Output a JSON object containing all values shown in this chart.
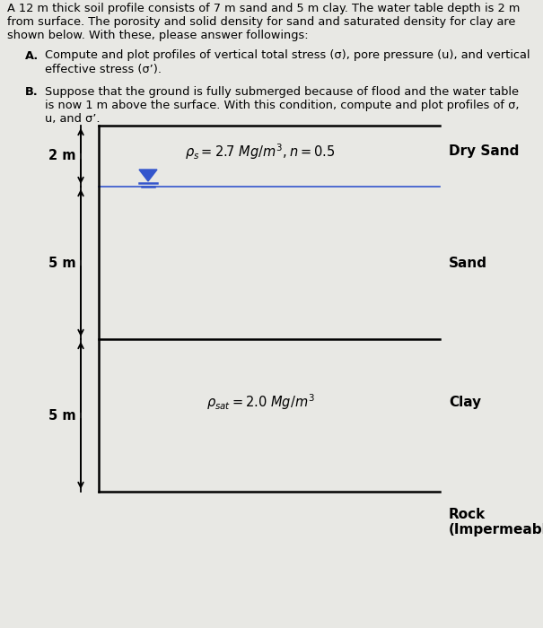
{
  "bg_color": "#e8e8e4",
  "text_color": "#000000",
  "fig_width": 6.05,
  "fig_height": 7.0,
  "dpi": 100,
  "top_text_line1": "A 12 m thick soil profile consists of 7 m sand and 5 m clay. The water table depth is 2 m",
  "top_text_line2": "from surface. The porosity and solid density for sand and saturated density for clay are",
  "top_text_line3": "shown below. With these, please answer followings:",
  "itemA_label": "A.",
  "itemA_text_line1": "Compute and plot profiles of vertical total stress (σ), pore pressure (u), and vertical",
  "itemA_text_line2": "effective stress (σ’).",
  "itemB_label": "B.",
  "itemB_text_line1": "Suppose that the ground is fully submerged because of flood and the water table",
  "itemB_text_line2": "is now 1 m above the surface. With this condition, compute and plot profiles of σ,",
  "itemB_text_line3": "u, and σ’.",
  "label_2m": "2 m",
  "label_5m_upper": "5 m",
  "label_5m_lower": "5 m",
  "dry_sand_label": "Dry Sand",
  "sand_label": "Sand",
  "clay_label": "Clay",
  "rock_label": "Rock\n(Impermeable)",
  "wt_color": "#3355cc",
  "box_color": "#000000",
  "arrow_color": "#000000"
}
